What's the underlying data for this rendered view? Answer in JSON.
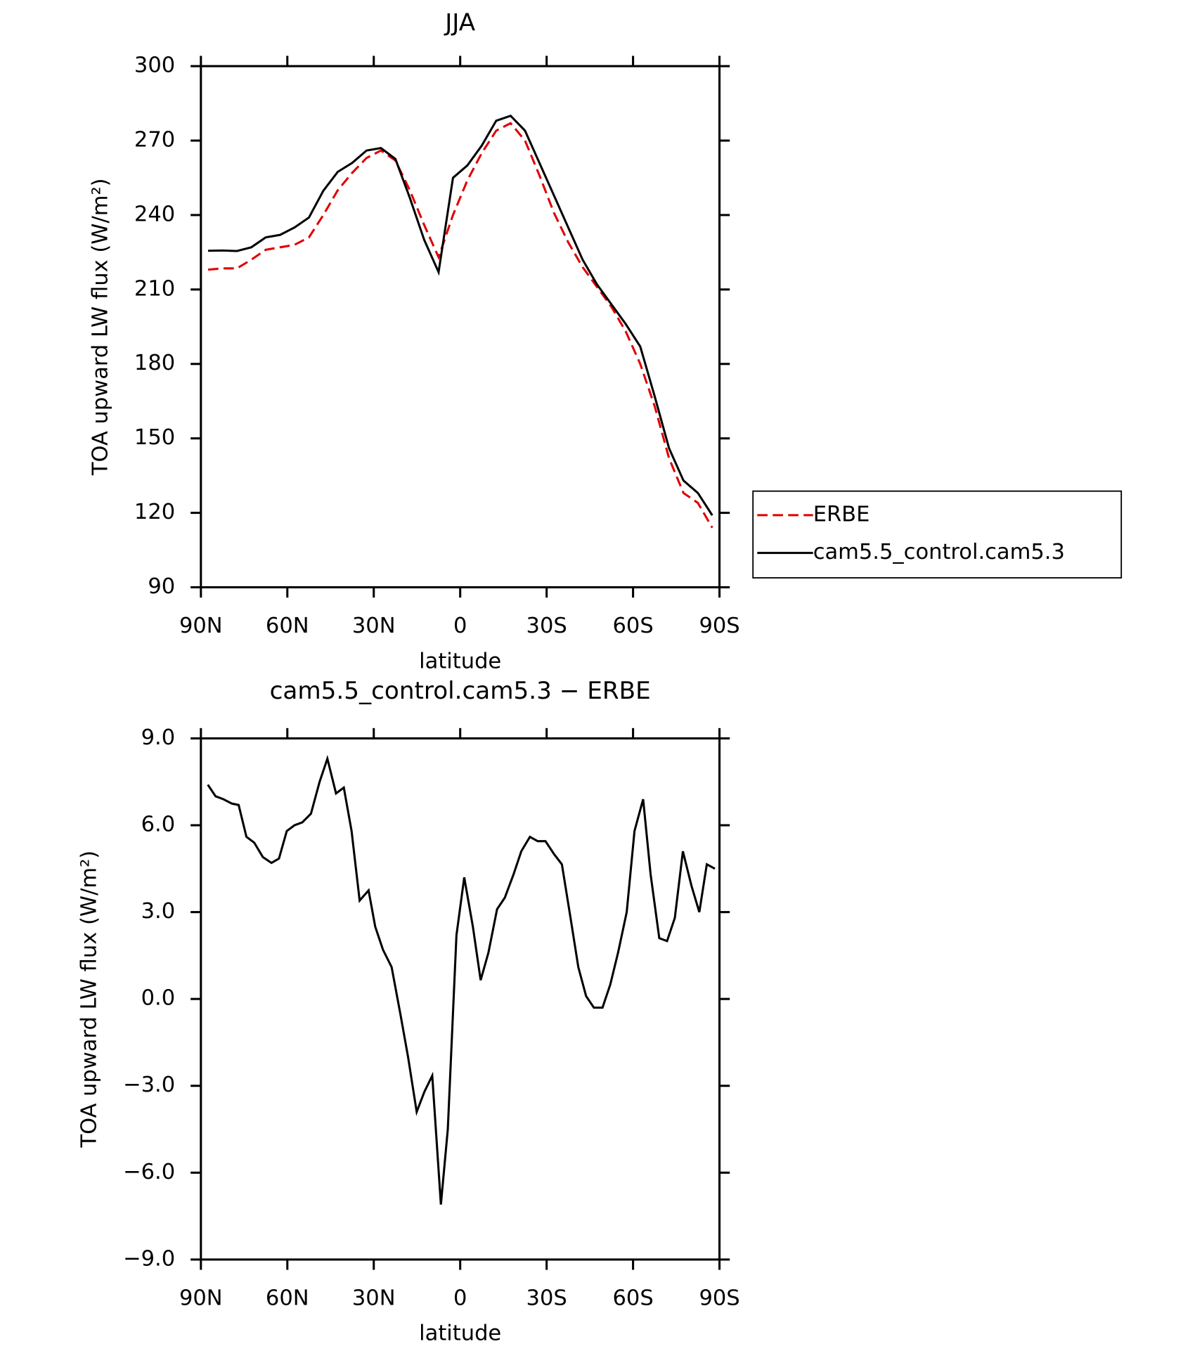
{
  "chart_data": [
    {
      "type": "line",
      "title": "JJA",
      "xlabel": "latitude",
      "ylabel": "TOA upward LW flux (W/m²)",
      "x": [
        87.5,
        82.5,
        77.5,
        72.5,
        67.5,
        62.5,
        57.5,
        52.5,
        47.5,
        42.5,
        37.5,
        32.5,
        27.5,
        22.5,
        17.5,
        12.5,
        7.5,
        2.5,
        -2.5,
        -7.5,
        -12.5,
        -17.5,
        -22.5,
        -27.5,
        -32.5,
        -37.5,
        -42.5,
        -47.5,
        -52.5,
        -57.5,
        -62.5,
        -67.5,
        -72.5,
        -77.5,
        -82.5,
        -87.5
      ],
      "series": [
        {
          "name": "ERBE",
          "color": "#e00000",
          "dash": true,
          "values": [
            218,
            218.5,
            218.5,
            222,
            226,
            227,
            228,
            231,
            240,
            250,
            257,
            263,
            266,
            262,
            250,
            236,
            223,
            240,
            254,
            265,
            274,
            277,
            270,
            256,
            241,
            229,
            219,
            211,
            203,
            193,
            180,
            163,
            142,
            128,
            124,
            114
          ]
        },
        {
          "name": "cam5.5_control.cam5.3",
          "color": "#000000",
          "dash": false,
          "values": [
            225.6,
            225.7,
            225.5,
            227,
            231,
            232,
            235,
            239,
            249.8,
            257.4,
            261,
            266,
            267,
            262.6,
            247,
            230,
            217,
            255,
            260,
            268,
            278,
            280,
            274,
            261,
            248,
            235,
            222,
            212,
            204,
            196,
            187,
            167,
            146,
            133,
            128,
            119
          ]
        }
      ],
      "xlim": [
        90,
        -90
      ],
      "xticks": [
        {
          "value": 90,
          "label": "90N"
        },
        {
          "value": 60,
          "label": "60N"
        },
        {
          "value": 30,
          "label": "30N"
        },
        0,
        {
          "value": -30,
          "label": "30S"
        },
        {
          "value": -60,
          "label": "60S"
        },
        {
          "value": -90,
          "label": "90S"
        }
      ],
      "ylim": [
        90,
        300
      ],
      "yticks": [
        300,
        270,
        240,
        210,
        180,
        150,
        120,
        90
      ],
      "legend": "right"
    },
    {
      "type": "line",
      "title": "cam5.5_control.cam5.3 − ERBE",
      "xlabel": "latitude",
      "ylabel": "TOA upward LW flux (W/m²)",
      "x": [
        87.6,
        84.9,
        82.2,
        79.3,
        76.9,
        74.2,
        71.5,
        68.5,
        65.5,
        62.9,
        60.2,
        57.5,
        54.8,
        51.8,
        48.8,
        46.1,
        43.1,
        40.4,
        37.7,
        34.9,
        31.8,
        29.5,
        26.8,
        23.8,
        20.8,
        18.1,
        15.1,
        12.4,
        9.7,
        6.7,
        4.3,
        1.3,
        -1.4,
        -4.4,
        -7.1,
        -9.8,
        -12.8,
        -15.5,
        -18.5,
        -21.2,
        -24.2,
        -26.9,
        -29.6,
        -32.6,
        -35.3,
        -38.3,
        -41,
        -43.7,
        -46.4,
        -49.4,
        -52.1,
        -54.8,
        -57.8,
        -60.5,
        -63.5,
        -66.1,
        -69.1,
        -71.8,
        -74.5,
        -77.3,
        -80.3,
        -83,
        -85.6,
        -88.4
      ],
      "series": [
        {
          "color": "#000000",
          "dash": false,
          "values": [
            7.4,
            7.0,
            6.9,
            6.75,
            6.7,
            5.6,
            5.4,
            4.9,
            4.7,
            4.85,
            5.8,
            6.0,
            6.1,
            6.4,
            7.5,
            8.3,
            7.1,
            7.3,
            5.8,
            3.4,
            3.75,
            2.5,
            1.7,
            1.1,
            -0.5,
            -2.0,
            -3.9,
            -3.2,
            -2.65,
            -7.1,
            -4.5,
            2.2,
            4.2,
            2.5,
            0.65,
            1.6,
            3.1,
            3.5,
            4.3,
            5.1,
            5.6,
            5.45,
            5.45,
            5.0,
            4.65,
            2.8,
            1.1,
            0.1,
            -0.3,
            -0.3,
            0.5,
            1.6,
            3.0,
            5.8,
            6.9,
            4.3,
            2.1,
            2.0,
            2.8,
            5.1,
            3.9,
            3.0,
            4.65,
            4.5
          ]
        }
      ],
      "xlim": [
        90,
        -90
      ],
      "xticks": [
        {
          "value": 90,
          "label": "90N"
        },
        {
          "value": 60,
          "label": "60N"
        },
        {
          "value": 30,
          "label": "30N"
        },
        0,
        {
          "value": -30,
          "label": "30S"
        },
        {
          "value": -60,
          "label": "60S"
        },
        {
          "value": -90,
          "label": "90S"
        }
      ],
      "ylim": [
        -9,
        9
      ],
      "yticks": [
        {
          "value": 9,
          "label": "9.0"
        },
        {
          "value": 6,
          "label": "6.0"
        },
        {
          "value": 3,
          "label": "3.0"
        },
        {
          "value": 0,
          "label": "0.0"
        },
        {
          "value": -3,
          "label": "−3.0"
        },
        {
          "value": -6,
          "label": "−6.0"
        },
        {
          "value": -9,
          "label": "−9.0"
        }
      ]
    }
  ]
}
